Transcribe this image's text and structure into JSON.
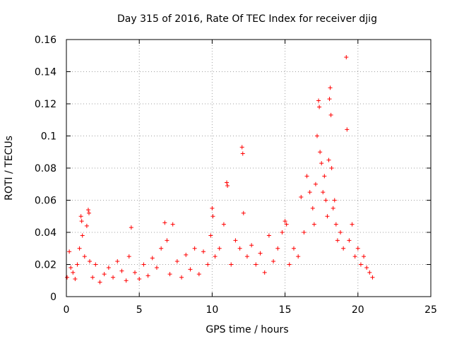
{
  "chart_data": {
    "type": "scatter",
    "title": "Day 315 of 2016, Rate Of TEC Index for receiver djig",
    "xlabel": "GPS time / hours",
    "ylabel": "ROTI / TECUs",
    "xlim": [
      0,
      25
    ],
    "ylim": [
      0,
      0.16
    ],
    "xticks": [
      0,
      5,
      10,
      15,
      20,
      25
    ],
    "xtick_labels": [
      "0",
      "5",
      "10",
      "15",
      "20",
      "25"
    ],
    "yticks": [
      0,
      0.02,
      0.04,
      0.06,
      0.08,
      0.1,
      0.12,
      0.14,
      0.16
    ],
    "ytick_labels": [
      "0",
      "0.02",
      "0.04",
      "0.06",
      "0.08",
      "0.1",
      "0.12",
      "0.14",
      "0.16"
    ],
    "grid": true,
    "marker": "plus",
    "series": [
      {
        "name": "ROTI",
        "color": "#ff0000",
        "x": [
          0.05,
          0.2,
          0.3,
          0.45,
          0.6,
          0.75,
          0.9,
          1.0,
          1.05,
          1.1,
          1.25,
          1.4,
          1.5,
          1.55,
          1.6,
          1.8,
          2.0,
          2.3,
          2.6,
          2.9,
          3.2,
          3.5,
          3.8,
          4.1,
          4.3,
          4.45,
          4.7,
          5.0,
          5.3,
          5.6,
          5.9,
          6.2,
          6.5,
          6.75,
          6.9,
          7.1,
          7.3,
          7.6,
          7.9,
          8.2,
          8.5,
          8.8,
          9.1,
          9.4,
          9.7,
          9.9,
          10.0,
          10.05,
          10.2,
          10.5,
          10.8,
          11.0,
          11.05,
          11.3,
          11.6,
          11.9,
          12.05,
          12.1,
          12.15,
          12.4,
          12.7,
          13.0,
          13.3,
          13.6,
          13.9,
          14.2,
          14.5,
          14.8,
          15.0,
          15.1,
          15.3,
          15.6,
          15.9,
          16.1,
          16.3,
          16.5,
          16.7,
          16.9,
          17.0,
          17.1,
          17.2,
          17.3,
          17.35,
          17.4,
          17.5,
          17.6,
          17.7,
          17.8,
          17.9,
          18.0,
          18.05,
          18.1,
          18.15,
          18.2,
          18.3,
          18.4,
          18.5,
          18.6,
          18.8,
          19.0,
          19.2,
          19.25,
          19.4,
          19.6,
          19.8,
          20.0,
          20.2,
          20.4,
          20.6,
          20.8,
          21.0
        ],
        "y": [
          0.012,
          0.028,
          0.018,
          0.015,
          0.011,
          0.02,
          0.03,
          0.05,
          0.047,
          0.038,
          0.025,
          0.044,
          0.054,
          0.052,
          0.022,
          0.012,
          0.02,
          0.009,
          0.014,
          0.018,
          0.012,
          0.022,
          0.016,
          0.01,
          0.025,
          0.043,
          0.015,
          0.011,
          0.02,
          0.013,
          0.024,
          0.018,
          0.03,
          0.046,
          0.035,
          0.014,
          0.045,
          0.022,
          0.012,
          0.026,
          0.017,
          0.03,
          0.014,
          0.028,
          0.02,
          0.038,
          0.055,
          0.05,
          0.025,
          0.03,
          0.045,
          0.071,
          0.069,
          0.02,
          0.035,
          0.03,
          0.093,
          0.089,
          0.052,
          0.025,
          0.032,
          0.02,
          0.027,
          0.015,
          0.038,
          0.022,
          0.03,
          0.04,
          0.047,
          0.045,
          0.02,
          0.03,
          0.025,
          0.062,
          0.04,
          0.075,
          0.065,
          0.055,
          0.045,
          0.07,
          0.1,
          0.122,
          0.118,
          0.09,
          0.083,
          0.065,
          0.075,
          0.06,
          0.05,
          0.085,
          0.123,
          0.13,
          0.113,
          0.08,
          0.055,
          0.06,
          0.045,
          0.035,
          0.04,
          0.03,
          0.149,
          0.104,
          0.035,
          0.045,
          0.025,
          0.03,
          0.02,
          0.025,
          0.018,
          0.015,
          0.012
        ]
      }
    ]
  }
}
